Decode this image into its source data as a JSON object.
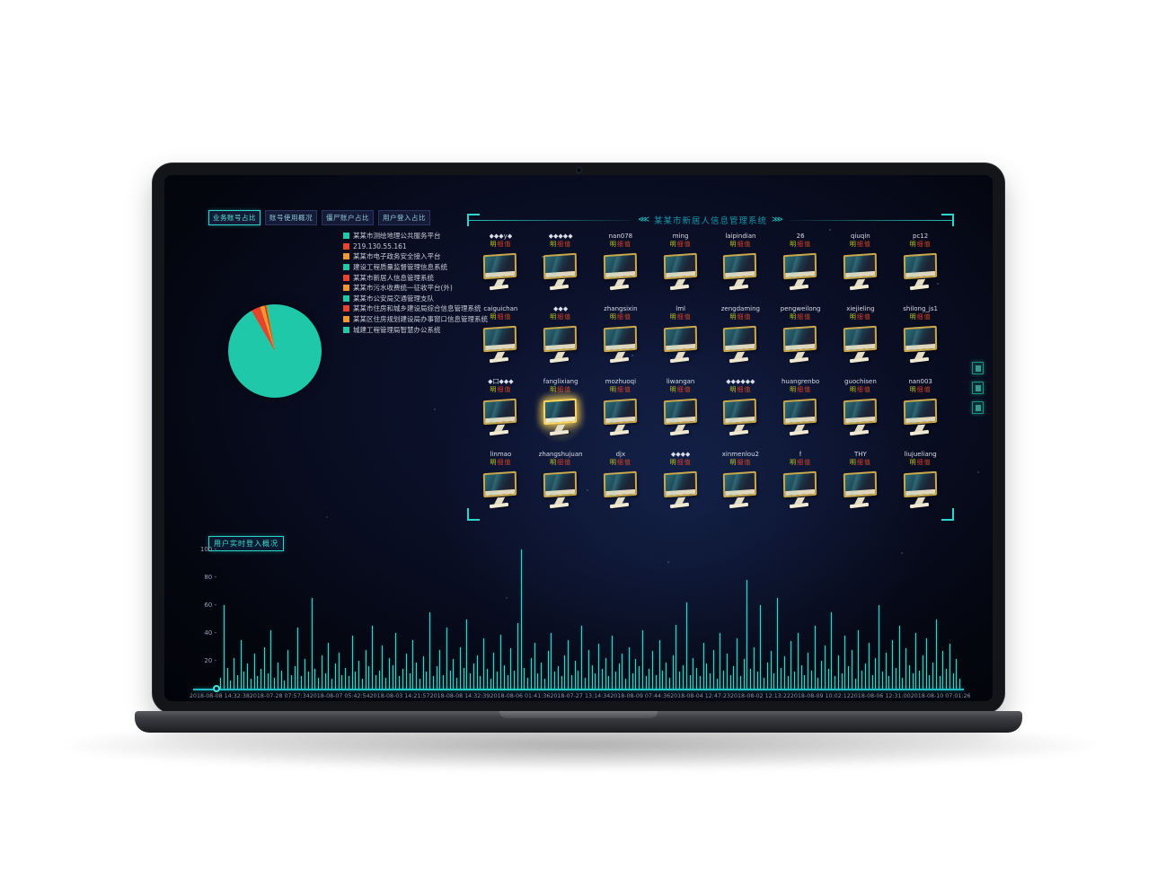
{
  "tabs": [
    {
      "label": "业务账号占比",
      "active": true
    },
    {
      "label": "账号使用概况",
      "active": false
    },
    {
      "label": "僵尸账户占比",
      "active": false
    },
    {
      "label": "用户登入占比",
      "active": false
    }
  ],
  "legend": {
    "items": [
      {
        "label": "某某市测绘地理公共服务平台",
        "color": "#1fc8a9"
      },
      {
        "label": "219.130.55.161",
        "color": "#e8432c"
      },
      {
        "label": "某某市电子政务安全接入平台",
        "color": "#f0982e"
      },
      {
        "label": "建设工程质量监督管理信息系统",
        "color": "#1fc8a9"
      },
      {
        "label": "某某市新居人信息管理系统",
        "color": "#e8432c"
      },
      {
        "label": "某某市污水收费统一征收平台(外)",
        "color": "#f0982e"
      },
      {
        "label": "某某市公安局交通管理支队",
        "color": "#1fc8a9"
      },
      {
        "label": "某某市住房和城乡建设局综合信息管理系统",
        "color": "#e8432c"
      },
      {
        "label": "某某区住房规划建设局办事窗口信息管理系统",
        "color": "#f0982e"
      },
      {
        "label": "城建工程管理局智慧办公系统",
        "color": "#1fc8a9"
      }
    ]
  },
  "panel": {
    "left_arrow": "⋘",
    "right_arrow": "⋙",
    "title": "某某市新居人信息管理系统",
    "detail_text": "明细值",
    "highlight": {
      "row": 2,
      "col": 1
    },
    "users": [
      [
        "◆◆◆y◆",
        "◆◆◆◆◆",
        "nan078",
        "ming",
        "laipindian",
        "26",
        "qiuqin",
        "pc12"
      ],
      [
        "caiguichan",
        "◆◆◆",
        "zhangsixin",
        "lml",
        "zengdaming",
        "pengweilong",
        "xiejieling",
        "shilong_js1"
      ],
      [
        "◆口◆◆◆",
        "fanglixiang",
        "mozhuoqi",
        "liwangan",
        "◆◆◆◆◆◆",
        "huangrenbo",
        "guochisen",
        "nan003"
      ],
      [
        "linmao",
        "zhangshujuan",
        "djx",
        "◆◆◆◆",
        "xinmenlou2",
        "f",
        "THY",
        "liujueliang"
      ]
    ]
  },
  "bottom_chart": {
    "label": "用户实时登入概况"
  },
  "chart_data": [
    {
      "type": "pie",
      "title": "业务账号占比",
      "start_deg": 330,
      "slices": [
        {
          "color": "#e8432c",
          "pct": 3.2
        },
        {
          "color": "#f0982e",
          "pct": 1.5
        },
        {
          "color": "#d2382a",
          "pct": 0.6
        },
        {
          "color": "#7cb342",
          "pct": 0.6
        },
        {
          "color": "#1fc8a9",
          "pct": 94.1
        }
      ],
      "legend_labels": [
        "某某市测绘地理公共服务平台",
        "219.130.55.161",
        "某某市电子政务安全接入平台",
        "建设工程质量监督管理信息系统",
        "某某市新居人信息管理系统",
        "某某市污水收费统一征收平台(外)",
        "某某市公安局交通管理支队",
        "某某市住房和城乡建设局综合信息管理系统",
        "某某区住房规划建设局办事窗口信息管理系统",
        "城建工程管理局智慧办公系统"
      ]
    },
    {
      "type": "bar",
      "title": "用户实时登入概况",
      "ylim": [
        0,
        100
      ],
      "y_ticks": [
        100,
        80,
        60,
        40,
        20
      ],
      "grid": false,
      "x_ticks": [
        "2018-08-08 14:32:38",
        "2018-07-28 07:57:34",
        "2018-08-07 05:42:54",
        "2018-08-03 14:21:57",
        "2018-08-08 14:32:39",
        "2018-08-06 01:41:36",
        "2018-07-27 13:14:34",
        "2018-08-09 07:44:36",
        "2018-08-04 12:47:23",
        "2018-08-02 12:13:22",
        "2018-08-09 10:02:12",
        "2018-08-06 12:31:00",
        "2018-08-10 07:01:26"
      ],
      "values": [
        8,
        60,
        15,
        6,
        22,
        10,
        35,
        12,
        18,
        7,
        25,
        9,
        14,
        30,
        11,
        42,
        8,
        19,
        13,
        6,
        28,
        10,
        16,
        44,
        9,
        21,
        12,
        65,
        14,
        8,
        24,
        11,
        33,
        7,
        18,
        26,
        10,
        15,
        9,
        38,
        12,
        20,
        7,
        28,
        16,
        45,
        10,
        13,
        31,
        8,
        22,
        17,
        40,
        9,
        14,
        25,
        11,
        35,
        19,
        7,
        23,
        12,
        55,
        9,
        16,
        28,
        10,
        44,
        13,
        21,
        8,
        30,
        15,
        50,
        11,
        18,
        24,
        9,
        36,
        14,
        7,
        26,
        12,
        39,
        17,
        10,
        29,
        13,
        47,
        100,
        15,
        8,
        22,
        33,
        11,
        19,
        7,
        27,
        40,
        12,
        16,
        9,
        24,
        35,
        10,
        20,
        13,
        45,
        8,
        28,
        17,
        11,
        32,
        14,
        22,
        9,
        38,
        12,
        18,
        25,
        7,
        30,
        11,
        21,
        16,
        42,
        9,
        14,
        27,
        10,
        35,
        13,
        19,
        8,
        24,
        46,
        12,
        17,
        62,
        10,
        22,
        15,
        9,
        33,
        18,
        11,
        28,
        7,
        40,
        13,
        25,
        10,
        16,
        36,
        9,
        21,
        78,
        14,
        30,
        12,
        60,
        8,
        19,
        27,
        11,
        65,
        15,
        23,
        9,
        34,
        12,
        40,
        17,
        10,
        26,
        13,
        45,
        8,
        20,
        31,
        14,
        55,
        9,
        24,
        11,
        38,
        16,
        28,
        7,
        42,
        13,
        18,
        33,
        10,
        22,
        60,
        12,
        26,
        9,
        35,
        15,
        45,
        8,
        29,
        17,
        11,
        40,
        13,
        24,
        36,
        10,
        19,
        50,
        9,
        27,
        14,
        32,
        11,
        21,
        7
      ]
    }
  ]
}
